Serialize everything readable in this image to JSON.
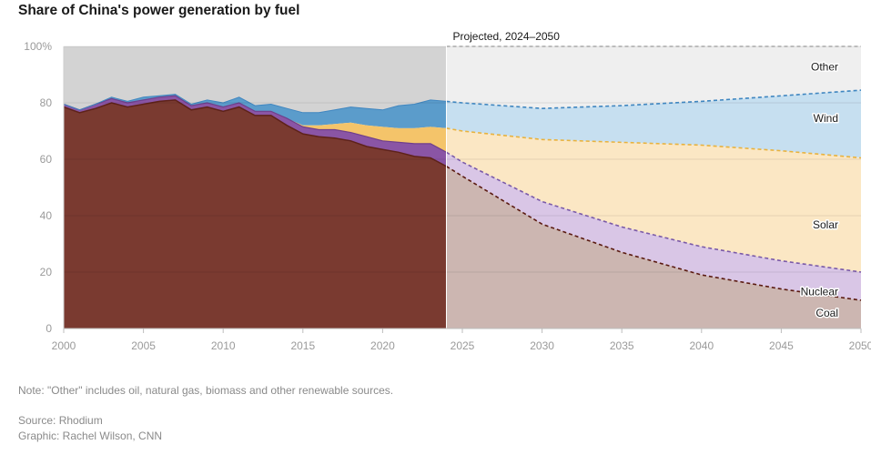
{
  "chart_data": {
    "type": "area",
    "title": "Share of China's power generation by fuel",
    "xlabel": "",
    "ylabel": "",
    "xlim": [
      2000,
      2050
    ],
    "ylim": [
      0,
      100
    ],
    "x_ticks": [
      "2000",
      "2005",
      "2010",
      "2015",
      "2020",
      "2025",
      "2030",
      "2035",
      "2040",
      "2045",
      "2050"
    ],
    "y_ticks": [
      "0",
      "20",
      "40",
      "60",
      "80",
      "100%"
    ],
    "annotation": "Projected, 2024–2050",
    "projection_start": 2024,
    "stack_order": [
      "Coal",
      "Nuclear",
      "Solar",
      "Wind",
      "Other"
    ],
    "historical": {
      "x": [
        2000,
        2001,
        2002,
        2003,
        2004,
        2005,
        2006,
        2007,
        2008,
        2009,
        2010,
        2011,
        2012,
        2013,
        2014,
        2015,
        2016,
        2017,
        2018,
        2019,
        2020,
        2021,
        2022,
        2023,
        2024
      ],
      "cumulative": {
        "Coal": [
          78.5,
          76.5,
          78,
          80,
          78.5,
          79.5,
          80.5,
          81,
          77.5,
          78.5,
          77,
          78.5,
          75.5,
          75.5,
          72,
          69,
          68,
          67.5,
          66.5,
          64.5,
          63.5,
          62.5,
          61,
          60.5,
          57.5
        ],
        "Nuclear": [
          79.5,
          77.5,
          79.5,
          81.5,
          80,
          81,
          82,
          82.5,
          79,
          80,
          78.5,
          80,
          77,
          77,
          74.5,
          71.5,
          70.5,
          70.5,
          69.5,
          68,
          66.5,
          66,
          65.5,
          65.5,
          62.5
        ],
        "Solar": [
          79.5,
          77.5,
          79.5,
          81.5,
          80,
          81,
          82,
          82.5,
          79,
          80,
          78.5,
          80,
          77,
          77,
          74.5,
          72,
          72,
          72.5,
          73,
          72,
          71.5,
          71,
          71,
          71.5,
          71
        ],
        "Wind": [
          79.5,
          77.5,
          79.5,
          82,
          80.5,
          82,
          82.5,
          83,
          79.5,
          81,
          80,
          82,
          79,
          79.5,
          78,
          76.5,
          76.5,
          77.5,
          78.5,
          78,
          77.5,
          79,
          79.5,
          81,
          80.5
        ]
      }
    },
    "projected": {
      "x": [
        2024,
        2025,
        2030,
        2035,
        2040,
        2045,
        2050
      ],
      "cumulative": {
        "Coal": [
          57.5,
          54,
          37,
          27,
          19,
          14,
          10
        ],
        "Nuclear": [
          62.5,
          59,
          45,
          36,
          29,
          24,
          20
        ],
        "Solar": [
          71,
          70,
          67,
          66,
          65,
          63,
          60.5
        ],
        "Wind": [
          80.5,
          80,
          78,
          79,
          80.5,
          82.5,
          84.5
        ],
        "Other": [
          100,
          100,
          100,
          100,
          100,
          100,
          100
        ]
      }
    },
    "series_labels": [
      "Other",
      "Wind",
      "Solar",
      "Nuclear",
      "Coal"
    ],
    "colors": {
      "Coal": "#7a3a30",
      "Coal_line": "#5a1a10",
      "Coal_proj": "#ccb6b1",
      "Nuclear": "#8a55a5",
      "Nuclear_proj": "#d9c6e6",
      "Nuclear_line": "#7a5aa8",
      "Solar": "#f4c46a",
      "Solar_proj": "#fbe7c4",
      "Solar_line": "#e8b23e",
      "Wind": "#5b9ccb",
      "Wind_proj": "#c6dff0",
      "Wind_line": "#3f86c0",
      "Other": "#d3d3d3",
      "Other_proj": "#efefef"
    }
  },
  "footer": {
    "note": "Note: \"Other\" includes oil, natural gas, biomass and other renewable sources.",
    "source": "Source: Rhodium",
    "credit": "Graphic: Rachel Wilson, CNN"
  }
}
